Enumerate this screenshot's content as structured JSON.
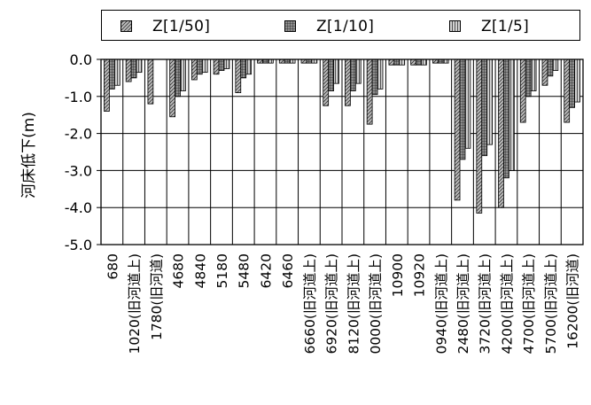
{
  "legend": {
    "items": [
      {
        "name": "Z[1/50]",
        "swatch": "diag"
      },
      {
        "name": "Z[1/10]",
        "swatch": "grid"
      },
      {
        "name": "Z[1/5]",
        "swatch": "vert"
      }
    ]
  },
  "chart_data": {
    "type": "bar",
    "ylabel": "河床低下(m)",
    "ylim": [
      -5.0,
      0.0
    ],
    "yticks": [
      0.0,
      -1.0,
      -2.0,
      -3.0,
      -4.0,
      -5.0
    ],
    "ytick_labels": [
      "0.0",
      "-1.0",
      "-2.0",
      "-3.0",
      "-4.0",
      "-5.0"
    ],
    "grid": true,
    "legend_position": "top",
    "series": [
      {
        "name": "Z[1/50]",
        "color": "#b8b8b8",
        "pattern": "diag",
        "values": [
          -1.4,
          -0.6,
          -1.2,
          -1.55,
          -0.55,
          -0.4,
          -0.9,
          -0.1,
          -0.1,
          -0.1,
          -1.25,
          -1.25,
          -1.75,
          -0.15,
          -0.15,
          -0.1,
          -3.8,
          -4.15,
          -4.0,
          -1.7,
          -0.7,
          -1.7
        ]
      },
      {
        "name": "Z[1/10]",
        "color": "#9a9a9a",
        "pattern": "grid",
        "values": [
          -0.8,
          -0.5,
          null,
          -1.0,
          -0.4,
          -0.3,
          -0.5,
          -0.1,
          -0.1,
          -0.1,
          -0.85,
          -0.85,
          -0.95,
          -0.15,
          -0.15,
          -0.1,
          -2.7,
          -2.6,
          -3.2,
          -1.0,
          -0.45,
          -1.3
        ]
      },
      {
        "name": "Z[1/5]",
        "color": "#c4c4c4",
        "pattern": "vert",
        "values": [
          -0.7,
          -0.35,
          null,
          -0.85,
          -0.35,
          -0.25,
          -0.4,
          -0.1,
          -0.1,
          -0.1,
          -0.65,
          -0.65,
          -0.8,
          -0.15,
          -0.15,
          -0.1,
          -2.4,
          -2.3,
          -3.0,
          -0.85,
          -0.3,
          -1.15
        ]
      }
    ],
    "category_groups": [
      {
        "values": [
          "680",
          "1020(旧河道上)"
        ]
      },
      {
        "values": [
          "1780(旧河道)"
        ]
      },
      {
        "values": [
          "4680"
        ]
      },
      {
        "values": [
          "4840"
        ]
      },
      {
        "values": [
          "5180"
        ]
      },
      {
        "values": [
          "5480"
        ]
      },
      {
        "values": [
          "6420"
        ]
      },
      {
        "values": [
          "6460"
        ]
      },
      {
        "values": [
          "6660(旧河道上)"
        ]
      },
      {
        "values": [
          "6920(旧河道上)"
        ]
      },
      {
        "values": [
          "8120(旧河道上)"
        ]
      },
      {
        "values": [
          "0000(旧河道上)"
        ]
      },
      {
        "values": [
          "10900"
        ]
      },
      {
        "values": [
          "10920"
        ]
      },
      {
        "values": [
          "0940(旧河道上)"
        ]
      },
      {
        "values": [
          "2480(旧河道上)"
        ]
      },
      {
        "values": [
          "3720(旧河道上)"
        ]
      },
      {
        "values": [
          "4200(旧河道上)"
        ]
      },
      {
        "values": [
          "4700(旧河道上)"
        ]
      },
      {
        "values": [
          "5700(旧河道上)"
        ]
      },
      {
        "values": [
          "16200(旧河道)"
        ]
      }
    ],
    "categories": [
      "680",
      "1020(旧河道上)",
      "1780(旧河道)",
      "4680",
      "4840",
      "5180",
      "5480",
      "6420",
      "6460",
      "6660(旧河道上)",
      "6920(旧河道上)",
      "8120(旧河道上)",
      "0000(旧河道上)",
      "10900",
      "10920",
      "0940(旧河道上)",
      "2480(旧河道上)",
      "3720(旧河道上)",
      "4200(旧河道上)",
      "4700(旧河道上)",
      "5700(旧河道上)",
      "16200(旧河道)"
    ]
  }
}
